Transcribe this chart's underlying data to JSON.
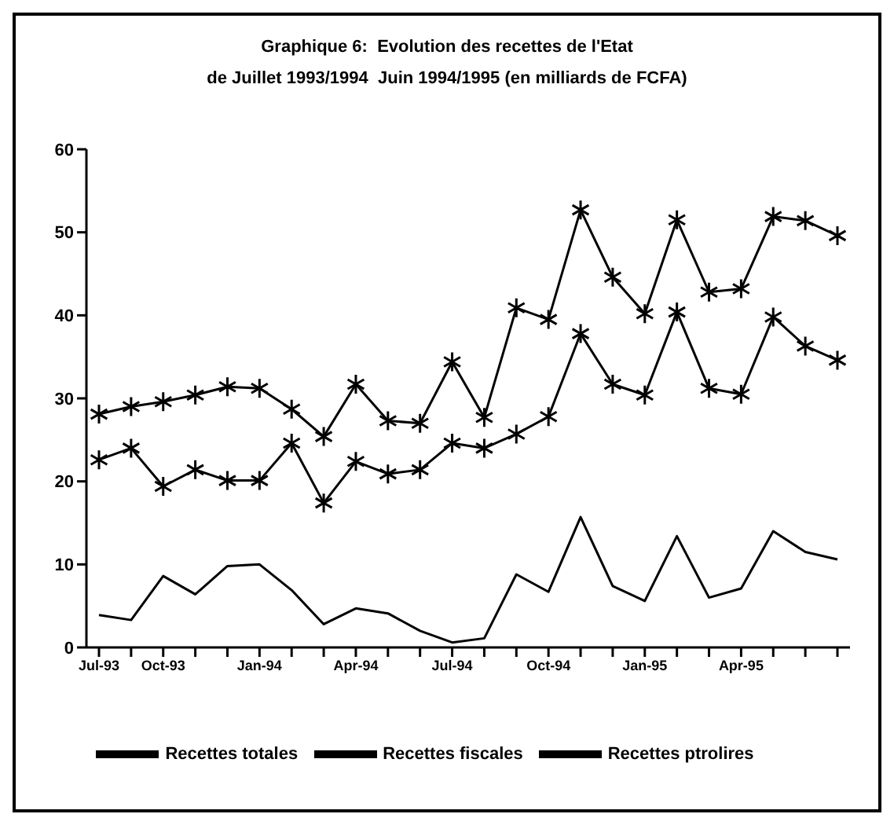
{
  "chart_data": {
    "type": "line",
    "title": "Graphique 6:  Evolution des recettes de l'Etat",
    "subtitle": "de Juillet 1993/1994  Juin 1994/1995 (en milliards de FCFA)",
    "categories": [
      "Jul-93",
      null,
      "Oct-93",
      null,
      null,
      "Jan-94",
      null,
      null,
      "Apr-94",
      null,
      null,
      "Jul-94",
      null,
      null,
      "Oct-94",
      null,
      null,
      "Jan-95",
      null,
      null,
      "Apr-95",
      null,
      null,
      null
    ],
    "series": [
      {
        "name": "Recettes totales",
        "color": "#000000",
        "marker": "cross",
        "values": [
          28.1,
          29.0,
          29.6,
          30.4,
          31.4,
          31.2,
          28.7,
          25.4,
          31.7,
          27.3,
          27.0,
          34.4,
          27.7,
          40.9,
          39.5,
          52.7,
          44.6,
          40.2,
          51.5,
          42.8,
          43.2,
          51.9,
          51.4,
          49.6
        ]
      },
      {
        "name": "Recettes fiscales",
        "color": "#000000",
        "marker": "cross",
        "values": [
          22.6,
          24.0,
          19.4,
          21.4,
          20.1,
          20.1,
          24.6,
          17.4,
          22.4,
          20.9,
          21.4,
          24.6,
          24.0,
          25.7,
          27.8,
          37.8,
          31.7,
          30.4,
          40.4,
          31.2,
          30.5,
          39.8,
          36.3,
          34.6
        ]
      },
      {
        "name": "Recettes ptrolires",
        "color": "#000000",
        "marker": "none",
        "values": [
          3.9,
          3.3,
          8.6,
          6.4,
          9.8,
          10.0,
          6.9,
          2.8,
          4.7,
          4.1,
          2.0,
          0.6,
          1.1,
          8.8,
          6.7,
          15.7,
          7.4,
          5.6,
          13.4,
          6.0,
          7.1,
          14.0,
          11.5,
          10.6
        ]
      }
    ],
    "ylim": [
      0,
      60
    ],
    "yticks": [
      0,
      10,
      20,
      30,
      40,
      50,
      60
    ],
    "grid": false,
    "legend": "bottom",
    "line_style": "solid"
  }
}
